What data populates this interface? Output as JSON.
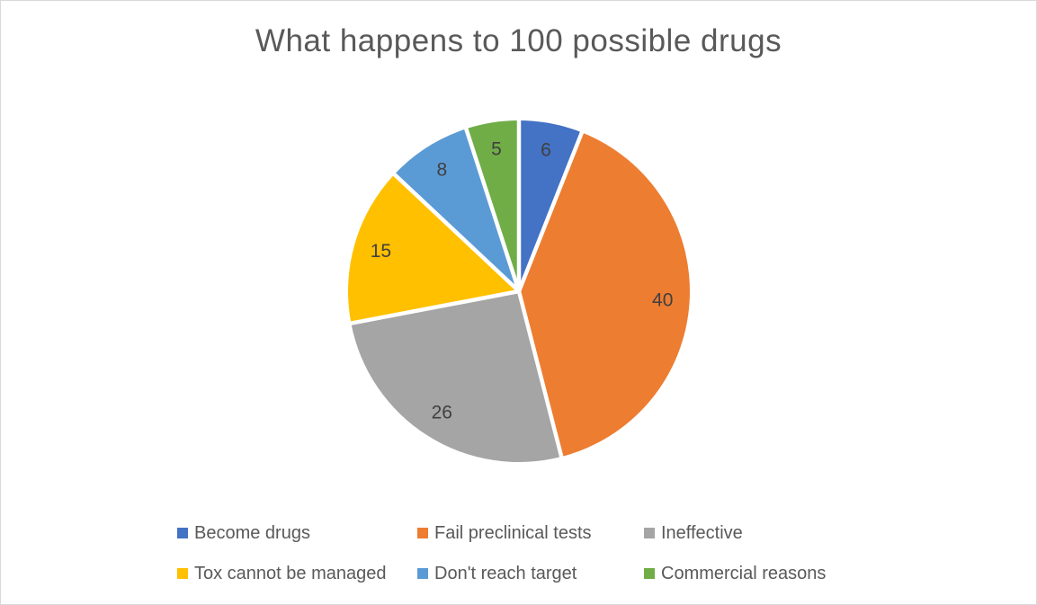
{
  "page": {
    "background_color": "#FFFFFF",
    "border_color": "#D9D9D9"
  },
  "chart_data": {
    "type": "pie",
    "title": "What happens to 100 possible drugs",
    "total": 100,
    "categories": [
      "Become drugs",
      "Fail preclinical tests",
      "Ineffective",
      "Tox cannot be managed",
      "Don't reach target",
      "Commercial reasons"
    ],
    "values": [
      6,
      40,
      26,
      15,
      8,
      5
    ],
    "data_labels": [
      "6",
      "40",
      "26",
      "15",
      "8",
      "5"
    ],
    "colors": [
      "#4472C4",
      "#ED7D31",
      "#A5A5A5",
      "#FFC000",
      "#5B9BD5",
      "#70AD47"
    ],
    "slice_separator_color": "#FFFFFF",
    "title_color": "#595959",
    "data_label_color": "#404040",
    "legend_text_color": "#595959",
    "legend_position": "bottom",
    "legend_rows": 2,
    "legend_columns": 3,
    "start_angle_deg": 0,
    "direction": "clockwise"
  }
}
